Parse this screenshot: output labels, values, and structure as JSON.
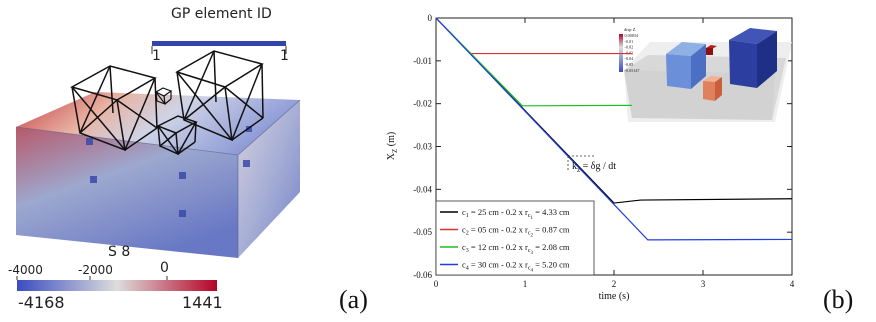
{
  "panel_a": {
    "label": "(a)",
    "gp_title": "GP element ID",
    "gp_tick_left": "1",
    "gp_tick_right": "1",
    "field_name": "S 8",
    "scale_ticks": [
      "-4000",
      "-2000",
      "0"
    ],
    "scale_min": "-4168",
    "scale_max": "1441",
    "colors": {
      "low": "#3b4cc0",
      "mid": "#dddddd",
      "high": "#b40426",
      "gp_bar": "#3344aa"
    }
  },
  "panel_b": {
    "label": "(b)",
    "ylabel": "X",
    "ylabel_sub": "Z",
    "ylabel_unit": " (m)",
    "xlabel": "time (s)",
    "annotation_k": "k",
    "annotation_sub": "z",
    "annotation_rest": " = δg / dt",
    "inset_title": "disp Z",
    "inset_ticks": [
      "0.00834",
      "-0.01",
      "-0.02",
      "-0.03",
      "-0.04",
      "-0.05",
      "-0.05147"
    ]
  },
  "chart_data": {
    "type": "line",
    "xlabel": "time (s)",
    "ylabel": "X_Z (m)",
    "xlim": [
      0,
      4
    ],
    "ylim": [
      -0.06,
      0
    ],
    "xticks": [
      "0",
      "1",
      "2",
      "3",
      "4"
    ],
    "yticks": [
      "0",
      "-0.01",
      "-0.02",
      "-0.03",
      "-0.04",
      "-0.05",
      "-0.06"
    ],
    "legend_position": "bottom-left",
    "series": [
      {
        "name": "c1 = 25 cm - 0.2 x rc1 = 4.33 cm",
        "name_parts": [
          "c",
          "1",
          " = 25 cm - 0.2 x r",
          "c",
          "1",
          " = 4.33 cm"
        ],
        "color": "#000000",
        "x": [
          0,
          2,
          2.3,
          4
        ],
        "y": [
          0,
          -0.0432,
          -0.0425,
          -0.0422
        ]
      },
      {
        "name": "c2 = 05 cm - 0.2 x rc2 = 0.87 cm",
        "name_parts": [
          "c",
          "2",
          " = 05 cm - 0.2 x r",
          "c",
          "2",
          " = 0.87 cm"
        ],
        "color": "#e03030",
        "x": [
          0,
          0.39,
          2.2
        ],
        "y": [
          0,
          -0.0083,
          -0.0083
        ]
      },
      {
        "name": "c3 = 12 cm - 0.2 x rc3 = 2.08 cm",
        "name_parts": [
          "c",
          "3",
          " = 12 cm - 0.2 x r",
          "c",
          "3",
          " = 2.08 cm"
        ],
        "color": "#20c020",
        "x": [
          0,
          0.97,
          2.2
        ],
        "y": [
          0,
          -0.0205,
          -0.0204
        ]
      },
      {
        "name": "c4 = 30 cm - 0.2 x rc4 = 5.20 cm",
        "name_parts": [
          "c",
          "4",
          " = 30 cm - 0.2 x r",
          "c",
          "4",
          " = 5.20 cm"
        ],
        "color": "#1f3fe0",
        "x": [
          0,
          2.38,
          4
        ],
        "y": [
          0,
          -0.0518,
          -0.0517
        ]
      }
    ]
  }
}
